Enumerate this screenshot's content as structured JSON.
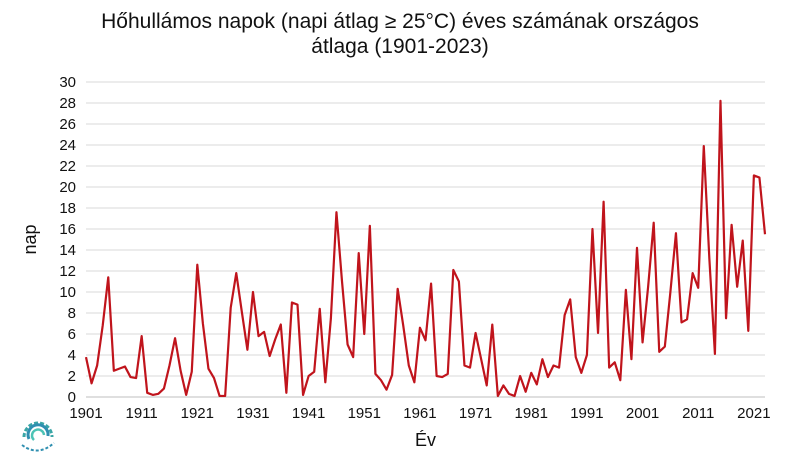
{
  "chart_data": {
    "type": "line",
    "title_line1": "Hőhullámos napok (napi átlag ≥ 25°C) éves számának országos",
    "title_line2": "átlaga (1901-2023)",
    "xlabel": "Év",
    "ylabel": "nap",
    "xlim": [
      1901,
      2023
    ],
    "ylim": [
      0,
      30
    ],
    "yticks": [
      0,
      2,
      4,
      6,
      8,
      10,
      12,
      14,
      16,
      18,
      20,
      22,
      24,
      26,
      28,
      30
    ],
    "xticks": [
      1901,
      1911,
      1921,
      1931,
      1941,
      1951,
      1961,
      1971,
      1981,
      1991,
      2001,
      2011,
      2021
    ],
    "grid": true,
    "line_color": "#c0141c",
    "series": [
      {
        "x": [
          1901,
          1902,
          1903,
          1904,
          1905,
          1906,
          1907,
          1908,
          1909,
          1910,
          1911,
          1912,
          1913,
          1914,
          1915,
          1916,
          1917,
          1918,
          1919,
          1920,
          1921,
          1922,
          1923,
          1924,
          1925,
          1926,
          1927,
          1928,
          1929,
          1930,
          1931,
          1932,
          1933,
          1934,
          1935,
          1936,
          1937,
          1938,
          1939,
          1940,
          1941,
          1942,
          1943,
          1944,
          1945,
          1946,
          1947,
          1948,
          1949,
          1950,
          1951,
          1952,
          1953,
          1954,
          1955,
          1956,
          1957,
          1958,
          1959,
          1960,
          1961,
          1962,
          1963,
          1964,
          1965,
          1966,
          1967,
          1968,
          1969,
          1970,
          1971,
          1972,
          1973,
          1974,
          1975,
          1976,
          1977,
          1978,
          1979,
          1980,
          1981,
          1982,
          1983,
          1984,
          1985,
          1986,
          1987,
          1988,
          1989,
          1990,
          1991,
          1992,
          1993,
          1994,
          1995,
          1996,
          1997,
          1998,
          1999,
          2000,
          2001,
          2002,
          2003,
          2004,
          2005,
          2006,
          2007,
          2008,
          2009,
          2010,
          2011,
          2012,
          2013,
          2014,
          2015,
          2016,
          2017,
          2018,
          2019,
          2020,
          2021,
          2022,
          2023
        ],
        "values": [
          3.8,
          1.3,
          3,
          6.8,
          11.4,
          2.5,
          2.7,
          2.9,
          1.9,
          1.8,
          5.8,
          0.4,
          0.2,
          0.3,
          0.8,
          3,
          5.6,
          2.5,
          0.2,
          2.4,
          12.6,
          7,
          2.7,
          1.8,
          0.1,
          0.1,
          8.5,
          11.8,
          8.1,
          4.5,
          10,
          5.8,
          6.2,
          3.9,
          5.5,
          6.9,
          0.4,
          9,
          8.8,
          0.2,
          2,
          2.4,
          8.4,
          1.4,
          7.5,
          17.6,
          11,
          5,
          3.8,
          13.7,
          6,
          16.3,
          2.2,
          1.6,
          0.7,
          2.1,
          10.3,
          6.8,
          3,
          1.4,
          6.6,
          5.4,
          10.8,
          2,
          1.9,
          2.2,
          12.1,
          11,
          3,
          2.8,
          6.1,
          3.6,
          1.1,
          6.9,
          0.1,
          1.1,
          0.3,
          0.1,
          2,
          0.5,
          2.3,
          1.2,
          3.6,
          1.9,
          3,
          2.8,
          7.8,
          9.3,
          3.8,
          2.3,
          4,
          16,
          6.1,
          18.6,
          2.8,
          3.3,
          1.6,
          10.2,
          3.6,
          14.2,
          5.2,
          10.5,
          16.6,
          4.3,
          4.8,
          10,
          15.6,
          7.1,
          7.4,
          11.8,
          10.4,
          23.9,
          13.2,
          4.1,
          28.2,
          7.5,
          16.4,
          10.5,
          14.9,
          6.3,
          21.1,
          20.9,
          15.5
        ]
      }
    ]
  }
}
